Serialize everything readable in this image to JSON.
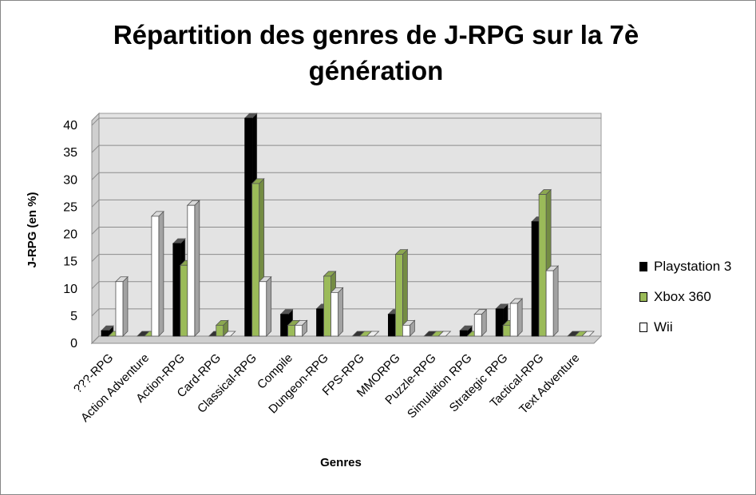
{
  "chart_data": {
    "type": "bar",
    "title": "Répartition des genres de J-RPG sur la 7è génération",
    "xlabel": "Genres",
    "ylabel": "J-RPG (en %)",
    "ylim": [
      0,
      40
    ],
    "yticks": [
      0,
      5,
      10,
      15,
      20,
      25,
      30,
      35,
      40
    ],
    "grid": true,
    "legend_position": "right",
    "categories": [
      "???-RPG",
      "Action Adventure",
      "Action-RPG",
      "Card-RPG",
      "Classical-RPG",
      "Compile",
      "Dungeon-RPG",
      "FPS-RPG",
      "MMORPG",
      "Puzzle-RPG",
      "Simulation RPG",
      "Strategic RPG",
      "Tactical-RPG",
      "Text Adventure"
    ],
    "series": [
      {
        "name": "Playstation 3",
        "color": "#000000",
        "values": [
          1,
          0,
          17,
          0,
          40,
          4,
          5,
          0,
          4,
          0,
          1,
          5,
          21,
          0
        ]
      },
      {
        "name": "Xbox 360",
        "color": "#9BBB59",
        "values": [
          0,
          0,
          13,
          2,
          28,
          2,
          11,
          0,
          15,
          0,
          0,
          2,
          26,
          0
        ]
      },
      {
        "name": "Wii",
        "color": "#FFFFFF",
        "values": [
          10,
          22,
          24,
          0,
          10,
          2,
          8,
          0,
          2,
          0,
          4,
          6,
          12,
          0
        ]
      }
    ]
  }
}
